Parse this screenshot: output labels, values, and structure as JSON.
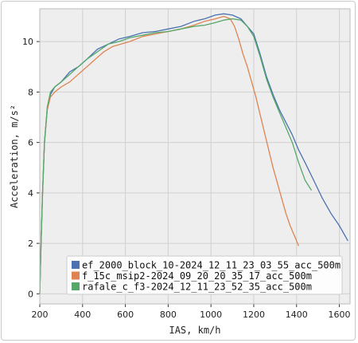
{
  "chart_data": {
    "type": "line",
    "title": "",
    "xlabel": "IAS, km/h",
    "ylabel": "Acceleration, m/s²",
    "xlim": [
      200,
      1650
    ],
    "ylim": [
      -0.4,
      11.3
    ],
    "xticks": [
      "200",
      "400",
      "600",
      "800",
      "1000",
      "1200",
      "1400",
      "1600"
    ],
    "yticks": [
      "0",
      "2",
      "4",
      "6",
      "8",
      "10"
    ],
    "grid": true,
    "legend_position": "bottom-right",
    "series": [
      {
        "name": "ef_2000_block_10-2024_12_11_23_03_55_acc_500m",
        "color": "#4c72b0",
        "points": [
          [
            200,
            0
          ],
          [
            206,
            2
          ],
          [
            213,
            4
          ],
          [
            222,
            6
          ],
          [
            235,
            7.3
          ],
          [
            250,
            7.9
          ],
          [
            270,
            8.2
          ],
          [
            300,
            8.4
          ],
          [
            340,
            8.8
          ],
          [
            380,
            9.0
          ],
          [
            420,
            9.3
          ],
          [
            470,
            9.7
          ],
          [
            520,
            9.9
          ],
          [
            570,
            10.1
          ],
          [
            620,
            10.2
          ],
          [
            680,
            10.35
          ],
          [
            740,
            10.4
          ],
          [
            800,
            10.5
          ],
          [
            860,
            10.6
          ],
          [
            920,
            10.8
          ],
          [
            970,
            10.9
          ],
          [
            1020,
            11.05
          ],
          [
            1060,
            11.1
          ],
          [
            1100,
            11.05
          ],
          [
            1140,
            10.9
          ],
          [
            1170,
            10.6
          ],
          [
            1200,
            10.3
          ],
          [
            1230,
            9.5
          ],
          [
            1260,
            8.6
          ],
          [
            1290,
            7.9
          ],
          [
            1320,
            7.3
          ],
          [
            1350,
            6.8
          ],
          [
            1380,
            6.3
          ],
          [
            1410,
            5.7
          ],
          [
            1440,
            5.2
          ],
          [
            1480,
            4.5
          ],
          [
            1520,
            3.8
          ],
          [
            1560,
            3.2
          ],
          [
            1600,
            2.7
          ],
          [
            1640,
            2.1
          ]
        ]
      },
      {
        "name": "f_15c_msip2-2024_09_20_20_35_17_acc_500m",
        "color": "#dd8452",
        "points": [
          [
            200,
            0
          ],
          [
            206,
            2
          ],
          [
            213,
            4
          ],
          [
            222,
            6
          ],
          [
            235,
            7.3
          ],
          [
            250,
            7.8
          ],
          [
            270,
            8.0
          ],
          [
            300,
            8.2
          ],
          [
            340,
            8.4
          ],
          [
            380,
            8.7
          ],
          [
            420,
            9.0
          ],
          [
            460,
            9.3
          ],
          [
            500,
            9.6
          ],
          [
            540,
            9.8
          ],
          [
            580,
            9.9
          ],
          [
            620,
            10.0
          ],
          [
            680,
            10.2
          ],
          [
            740,
            10.3
          ],
          [
            800,
            10.4
          ],
          [
            860,
            10.5
          ],
          [
            920,
            10.65
          ],
          [
            970,
            10.8
          ],
          [
            1020,
            10.9
          ],
          [
            1060,
            11.0
          ],
          [
            1090,
            10.9
          ],
          [
            1110,
            10.6
          ],
          [
            1130,
            10.1
          ],
          [
            1150,
            9.5
          ],
          [
            1170,
            9.0
          ],
          [
            1190,
            8.4
          ],
          [
            1210,
            7.8
          ],
          [
            1230,
            7.1
          ],
          [
            1250,
            6.4
          ],
          [
            1270,
            5.7
          ],
          [
            1290,
            5.0
          ],
          [
            1310,
            4.4
          ],
          [
            1330,
            3.8
          ],
          [
            1350,
            3.2
          ],
          [
            1370,
            2.7
          ],
          [
            1390,
            2.3
          ],
          [
            1410,
            1.9
          ]
        ]
      },
      {
        "name": "rafale_c_f3-2024_12_11_23_52_35_acc_500m",
        "color": "#55a868",
        "points": [
          [
            200,
            0
          ],
          [
            206,
            2
          ],
          [
            213,
            4
          ],
          [
            222,
            6
          ],
          [
            235,
            7.4
          ],
          [
            250,
            8.0
          ],
          [
            270,
            8.2
          ],
          [
            300,
            8.4
          ],
          [
            340,
            8.7
          ],
          [
            380,
            9.0
          ],
          [
            420,
            9.3
          ],
          [
            470,
            9.6
          ],
          [
            520,
            9.9
          ],
          [
            570,
            10.0
          ],
          [
            620,
            10.15
          ],
          [
            680,
            10.25
          ],
          [
            740,
            10.35
          ],
          [
            800,
            10.4
          ],
          [
            860,
            10.5
          ],
          [
            920,
            10.6
          ],
          [
            970,
            10.65
          ],
          [
            1020,
            10.75
          ],
          [
            1060,
            10.85
          ],
          [
            1100,
            10.9
          ],
          [
            1140,
            10.85
          ],
          [
            1170,
            10.6
          ],
          [
            1200,
            10.2
          ],
          [
            1230,
            9.4
          ],
          [
            1260,
            8.5
          ],
          [
            1290,
            7.8
          ],
          [
            1320,
            7.2
          ],
          [
            1350,
            6.6
          ],
          [
            1380,
            6.0
          ],
          [
            1410,
            5.2
          ],
          [
            1440,
            4.5
          ],
          [
            1470,
            4.1
          ]
        ]
      }
    ]
  }
}
